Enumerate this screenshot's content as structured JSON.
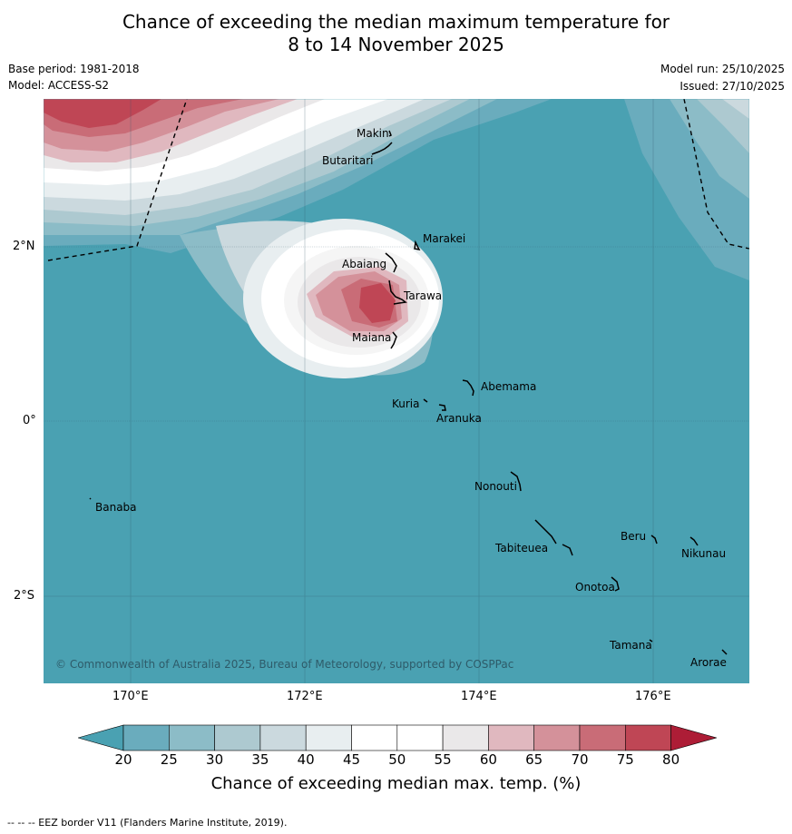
{
  "title": {
    "line1": "Chance of exceeding the median maximum temperature for",
    "line2": "8 to 14 November 2025"
  },
  "meta": {
    "base_period": "Base period: 1981-2018",
    "model": "Model: ACCESS-S2",
    "model_run": "Model run: 25/10/2025",
    "issued": "Issued: 27/10/2025"
  },
  "map": {
    "copyright": "© Commonwealth of Australia 2025, Bureau of Meteorology, supported by COSPPac",
    "lat_labels": [
      "2°N",
      "0°",
      "2°S"
    ],
    "lon_labels": [
      "170°E",
      "172°E",
      "174°E",
      "176°E"
    ],
    "places": [
      "Makin",
      "Butaritari",
      "Marakei",
      "Abaiang",
      "Tarawa",
      "Maiana",
      "Abemama",
      "Kuria",
      "Aranuka",
      "Nonouti",
      "Banaba",
      "Beru",
      "Nikunau",
      "Tabiteuea",
      "Onotoa",
      "Tamana",
      "Arorae"
    ]
  },
  "colorbar": {
    "ticks": [
      "20",
      "25",
      "30",
      "35",
      "40",
      "45",
      "50",
      "55",
      "60",
      "65",
      "70",
      "75",
      "80"
    ],
    "colors": [
      "#4aa1b2",
      "#6aacbd",
      "#8cbcc7",
      "#adc9d0",
      "#cbd9de",
      "#e8eef0",
      "#ffffff",
      "#ffffff",
      "#eae8e9",
      "#e0b8bf",
      "#d4919a",
      "#c96c77",
      "#bf4655",
      "#ad1d36"
    ],
    "label": "Chance of exceeding median max. temp. (%)"
  },
  "footnote": "--  --  -- EEZ border V11 (Flanders Marine Institute, 2019)."
}
